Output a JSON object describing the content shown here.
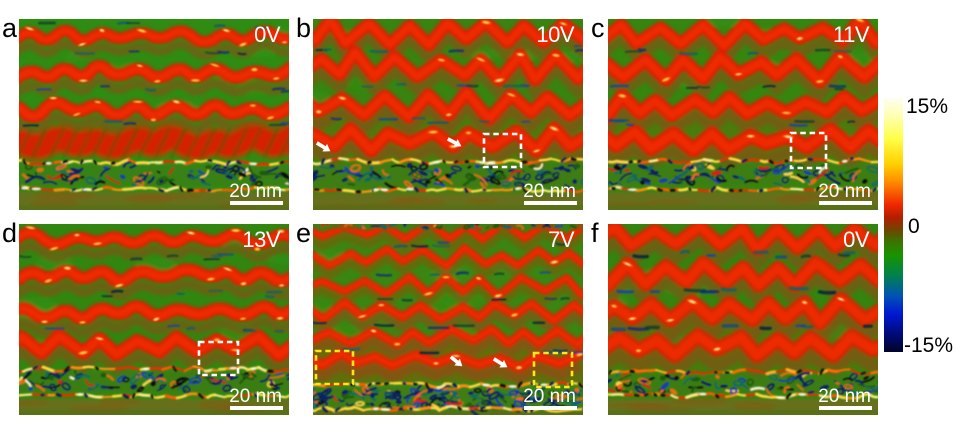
{
  "figure": {
    "type": "strain-map-micrographs",
    "panels": [
      {
        "id": "a",
        "label": "a",
        "voltage": "0V",
        "scale_bar": "20 nm"
      },
      {
        "id": "b",
        "label": "b",
        "voltage": "10V",
        "scale_bar": "20 nm"
      },
      {
        "id": "c",
        "label": "c",
        "voltage": "11V",
        "scale_bar": "20 nm"
      },
      {
        "id": "d",
        "label": "d",
        "voltage": "13V",
        "scale_bar": "20 nm"
      },
      {
        "id": "e",
        "label": "e",
        "voltage": "7V",
        "scale_bar": "20 nm"
      },
      {
        "id": "f",
        "label": "f",
        "voltage": "0V",
        "scale_bar": "20 nm"
      }
    ],
    "colorbar": {
      "max_label": "15%",
      "mid_label": "0",
      "min_label": "-15%",
      "colors_top_to_bottom": [
        "#fffef0",
        "#ffff48",
        "#ffd000",
        "#ff8c00",
        "#f02800",
        "#6e4600",
        "#3f7000",
        "#189400",
        "#00814e",
        "#0052b6",
        "#0018d2",
        "#000a78",
        "#000428"
      ]
    },
    "annotation_colors": {
      "roi_white": "#ffffff",
      "roi_yellow": "#ffe818",
      "arrow": "#ffffff"
    }
  }
}
